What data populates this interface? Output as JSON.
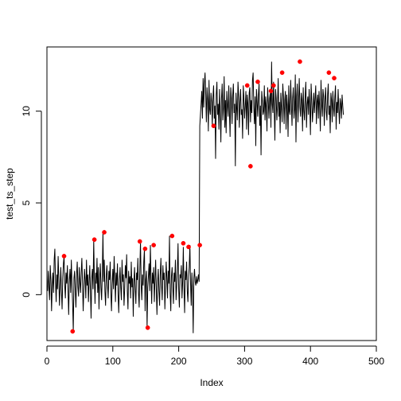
{
  "chart_data": {
    "type": "line",
    "title": "",
    "xlabel": "Index",
    "ylabel": "test_ts_step",
    "xlim": [
      0,
      500
    ],
    "ylim": [
      -2.5,
      13.5
    ],
    "x_ticks": [
      0,
      100,
      200,
      300,
      400,
      500
    ],
    "y_ticks": [
      0,
      5,
      10
    ],
    "grid": false,
    "legend": "none",
    "series": [
      {
        "color": "#000000",
        "values": [
          0.2,
          1.3,
          0.4,
          -0.3,
          1.6,
          0.8,
          -0.9,
          0.5,
          1.2,
          0.1,
          1.9,
          2.5,
          0.7,
          -0.4,
          1.1,
          0.3,
          2.1,
          0.9,
          -0.6,
          0.4,
          1.5,
          0.2,
          -0.8,
          0.9,
          1.7,
          2.1,
          0.5,
          -0.2,
          1.2,
          0.6,
          1.6,
          0.2,
          -1.1,
          0.8,
          1.4,
          0.1,
          1.9,
          0.6,
          -0.5,
          -2.0,
          0.9,
          1.3,
          0.2,
          -0.7,
          1.1,
          1.8,
          0.4,
          -0.1,
          1.5,
          0.7,
          0.1,
          1.2,
          2.0,
          0.6,
          -0.9,
          0.3,
          1.4,
          0.8,
          -0.2,
          1.9,
          0.5,
          1.1,
          -0.4,
          0.7,
          1.6,
          0.2,
          -1.3,
          0.9,
          1.4,
          0.3,
          3.0,
          0.8,
          -0.5,
          1.2,
          0.6,
          2.0,
          0.1,
          1.5,
          -0.8,
          0.9,
          1.7,
          0.4,
          -0.3,
          1.1,
          3.4,
          0.7,
          1.9,
          0.2,
          -0.6,
          1.0,
          1.6,
          0.5,
          -0.2,
          1.3,
          0.8,
          1.8,
          0.1,
          -0.9,
          0.6,
          1.4,
          0.3,
          2.1,
          0.9,
          -0.4,
          1.2,
          0.5,
          1.7,
          0.0,
          -1.0,
          0.8,
          1.5,
          0.4,
          -0.3,
          1.9,
          0.7,
          1.1,
          -0.6,
          0.3,
          1.6,
          0.9,
          2.2,
          0.2,
          -0.8,
          1.3,
          0.6,
          1.0,
          -0.2,
          1.8,
          0.4,
          0.9,
          -1.2,
          0.7,
          1.5,
          0.3,
          -0.5,
          1.2,
          0.8,
          2.0,
          0.1,
          -0.7,
          1.4,
          2.9,
          0.6,
          -0.3,
          1.1,
          0.5,
          1.8,
          2.5,
          -0.9,
          0.8,
          1.3,
          -1.8,
          0.4,
          1.0,
          1.7,
          0.2,
          2.7,
          0.9,
          -0.5,
          1.2,
          0.6,
          1.5,
          -0.4,
          0.8,
          1.9,
          0.3,
          -1.1,
          0.7,
          1.4,
          0.2,
          -0.6,
          1.1,
          2.0,
          0.5,
          -0.3,
          1.6,
          0.8,
          1.2,
          -0.8,
          0.4,
          1.8,
          0.9,
          -0.2,
          1.3,
          0.6,
          3.2,
          0.1,
          -0.9,
          1.0,
          1.5,
          0.4,
          -0.5,
          1.2,
          0.7,
          1.9,
          -0.3,
          0.5,
          1.4,
          2.8,
          0.3,
          -0.7,
          1.1,
          0.9,
          1.6,
          -0.2,
          0.7,
          2.6,
          0.4,
          -1.0,
          1.3,
          0.8,
          1.8,
          0.2,
          -0.4,
          1.0,
          1.5,
          2.7,
          0.6,
          -0.6,
          1.2,
          0.3,
          -2.1,
          0.9,
          1.4,
          0.7,
          0.5,
          1.0,
          0.6,
          0.8,
          1.1,
          0.7,
          9.2,
          9.8,
          10.4,
          11.1,
          9.6,
          11.8,
          10.2,
          11.5,
          12.1,
          10.9,
          9.4,
          11.3,
          10.6,
          8.9,
          11.7,
          10.1,
          9.8,
          11.0,
          10.5,
          9.2,
          10.8,
          11.4,
          9.6,
          10.3,
          7.4,
          10.9,
          11.6,
          9.8,
          10.4,
          9.0,
          11.2,
          10.0,
          8.3,
          10.7,
          11.5,
          9.5,
          10.2,
          11.9,
          9.1,
          10.6,
          8.8,
          11.1,
          10.3,
          9.7,
          11.4,
          10.0,
          8.6,
          11.3,
          10.7,
          9.3,
          10.9,
          11.5,
          9.9,
          10.4,
          7.0,
          11.0,
          10.2,
          9.5,
          11.6,
          10.8,
          9.1,
          10.5,
          11.2,
          9.8,
          10.1,
          8.5,
          11.4,
          10.7,
          9.6,
          10.3,
          11.1,
          9.0,
          10.9,
          10.4,
          8.7,
          11.0,
          11.3,
          9.4,
          10.6,
          9.9,
          11.7,
          12.1,
          10.2,
          9.3,
          10.8,
          8.1,
          11.2,
          10.5,
          9.7,
          10.9,
          11.5,
          9.2,
          10.3,
          7.6,
          11.1,
          10.6,
          9.8,
          10.0,
          11.4,
          9.5,
          10.8,
          10.2,
          8.9,
          11.3,
          10.5,
          9.6,
          10.7,
          11.0,
          9.1,
          12.7,
          10.4,
          9.9,
          11.6,
          10.1,
          8.4,
          11.2,
          10.7,
          9.5,
          10.3,
          11.8,
          9.7,
          10.5,
          8.8,
          11.0,
          10.2,
          9.4,
          11.5,
          10.8,
          9.3,
          10.6,
          11.1,
          9.0,
          10.9,
          10.3,
          8.6,
          11.4,
          10.0,
          9.8,
          11.7,
          10.4,
          9.2,
          10.7,
          11.3,
          9.6,
          10.1,
          12.0,
          8.3,
          10.8,
          11.5,
          9.4,
          10.5,
          11.8,
          10.2,
          9.7,
          11.0,
          10.6,
          8.9,
          11.3,
          10.0,
          9.5,
          10.9,
          11.6,
          9.1,
          10.4,
          10.8,
          9.8,
          11.2,
          10.3,
          8.7,
          11.5,
          10.6,
          9.4,
          10.1,
          11.0,
          9.9,
          10.7,
          11.4,
          9.3,
          10.5,
          10.9,
          9.6,
          11.1,
          10.2,
          8.9,
          11.7,
          10.4,
          9.7,
          11.2,
          10.8,
          9.2,
          10.6,
          11.3,
          10.0,
          9.5,
          10.9,
          11.5,
          9.8,
          10.3,
          8.8,
          11.0,
          10.6,
          9.4,
          11.1,
          10.2,
          9.7,
          10.8,
          11.4,
          9.0,
          10.5,
          9.9,
          11.2,
          10.1,
          9.3,
          10.7,
          10.4,
          9.6,
          10.9,
          10.3,
          9.8
        ]
      }
    ],
    "highlight_points": {
      "color": "#ff0000",
      "index": [
        26,
        72,
        87,
        141,
        149,
        153,
        162,
        190,
        207,
        215,
        232,
        253,
        304,
        309,
        320,
        340,
        344,
        357,
        384,
        428,
        436
      ],
      "values": [
        2.1,
        3.0,
        3.4,
        2.9,
        2.5,
        -1.8,
        2.7,
        3.2,
        2.8,
        2.6,
        2.7,
        9.2,
        11.4,
        7.0,
        11.6,
        11.1,
        11.4,
        12.1,
        12.7,
        12.1,
        11.8
      ]
    },
    "extra_points": {
      "index": [
        39
      ],
      "values": [
        -2.0
      ]
    }
  }
}
